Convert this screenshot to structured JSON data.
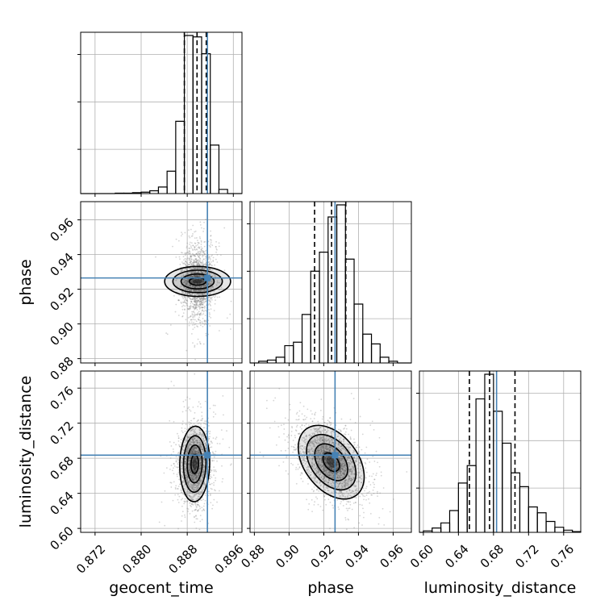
{
  "chart_data": {
    "type": "corner",
    "parameters": [
      "geocent_time",
      "phase",
      "luminosity_distance"
    ],
    "axis_labels": {
      "geocent_time": "geocent_time",
      "phase": "phase",
      "luminosity_distance": "luminosity_distance"
    },
    "ranges": {
      "geocent_time": [
        0.8695,
        0.8975
      ],
      "phase": [
        0.8775,
        0.9705
      ],
      "luminosity_distance": [
        0.5955,
        0.7795
      ]
    },
    "ticks": {
      "geocent_time": {
        "values": [
          0.872,
          0.88,
          0.888,
          0.896
        ],
        "labels": [
          "0.872",
          "0.880",
          "0.888",
          "0.896"
        ]
      },
      "phase": {
        "values": [
          0.88,
          0.9,
          0.92,
          0.94,
          0.96
        ],
        "labels": [
          "0.88",
          "0.90",
          "0.92",
          "0.94",
          "0.96"
        ]
      },
      "luminosity_distance": {
        "values": [
          0.6,
          0.64,
          0.68,
          0.72,
          0.76
        ],
        "labels": [
          "0.60",
          "0.64",
          "0.68",
          "0.72",
          "0.76"
        ]
      }
    },
    "truths": {
      "geocent_time": 0.8915,
      "phase": 0.9265,
      "luminosity_distance": 0.6835
    },
    "truth_color": "#4682b4",
    "quantiles": {
      "geocent_time": [
        0.8875,
        0.8897,
        0.8913
      ],
      "phase": [
        0.9147,
        0.9245,
        0.9327
      ],
      "luminosity_distance": [
        0.6525,
        0.6755,
        0.7045
      ]
    },
    "histograms": {
      "geocent_time": {
        "edges": [
          0.8695,
          0.871,
          0.8725,
          0.874,
          0.8755,
          0.877,
          0.8785,
          0.88,
          0.8815,
          0.883,
          0.8845,
          0.886,
          0.8875,
          0.889,
          0.8905,
          0.892,
          0.8935,
          0.895,
          0.8965,
          0.8975
        ],
        "counts": [
          0,
          0,
          0,
          0,
          1,
          1,
          2,
          3,
          6,
          14,
          48,
          155,
          339,
          336,
          300,
          104,
          9,
          0,
          0
        ]
      },
      "phase": {
        "edges": [
          0.8775,
          0.8825,
          0.8875,
          0.8925,
          0.8975,
          0.9025,
          0.9075,
          0.9125,
          0.9175,
          0.9225,
          0.9275,
          0.9325,
          0.9375,
          0.9425,
          0.9475,
          0.9525,
          0.9575,
          0.9625,
          0.9675,
          0.9705
        ],
        "counts": [
          0,
          3,
          5,
          10,
          30,
          36,
          84,
          159,
          192,
          253,
          274,
          180,
          102,
          50,
          33,
          10,
          3,
          0,
          0
        ]
      },
      "luminosity_distance": {
        "edges": [
          0.5955,
          0.6,
          0.61,
          0.62,
          0.63,
          0.64,
          0.65,
          0.66,
          0.67,
          0.68,
          0.69,
          0.7,
          0.71,
          0.72,
          0.73,
          0.74,
          0.75,
          0.76,
          0.77,
          0.7795
        ],
        "counts": [
          0,
          2,
          6,
          13,
          30,
          68,
          92,
          184,
          218,
          167,
          123,
          82,
          63,
          35,
          27,
          15,
          7,
          3,
          1
        ]
      }
    },
    "density_2d": [
      {
        "x": "geocent_time",
        "y": "phase",
        "center": [
          0.8898,
          0.9245
        ],
        "sigma": [
          0.0013,
          0.0095
        ],
        "correlation": 0.0
      },
      {
        "x": "geocent_time",
        "y": "luminosity_distance",
        "center": [
          0.8893,
          0.6735
        ],
        "sigma": [
          0.0013,
          0.0215
        ],
        "correlation": 0.05
      },
      {
        "x": "phase",
        "y": "luminosity_distance",
        "center": [
          0.9243,
          0.6755
        ],
        "sigma": [
          0.0095,
          0.021
        ],
        "correlation": -0.4
      }
    ],
    "grid": true
  }
}
